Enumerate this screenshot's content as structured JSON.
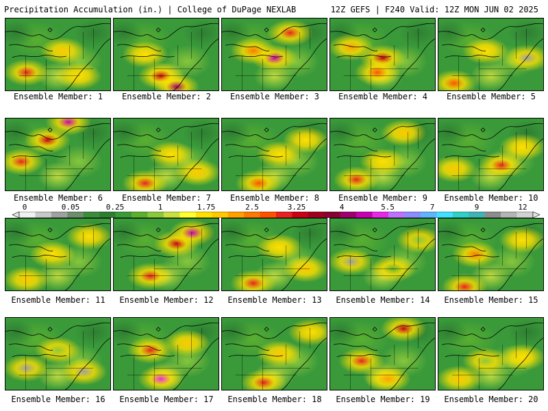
{
  "header": {
    "left_title": "Precipitation Accumulation (in.) | College of DuPage NEXLAB",
    "right_title": "12Z GEFS | F240 Valid: 12Z MON JUN 02 2025"
  },
  "colorbar": {
    "tick_labels": [
      "0",
      "0.05",
      "0.25",
      "1",
      "1.75",
      "2.5",
      "3.25",
      "4",
      "5.5",
      "7",
      "9",
      "12"
    ],
    "colors": [
      "#f0f0f0",
      "#c8c8c8",
      "#a0a0a0",
      "#6e8c6e",
      "#3c8c3c",
      "#2e7d32",
      "#3a9a3a",
      "#5cb030",
      "#8cc83c",
      "#c8e040",
      "#ffff30",
      "#ffe000",
      "#ffc800",
      "#ffa000",
      "#ff7800",
      "#ff5000",
      "#e82020",
      "#c80018",
      "#a00020",
      "#880030",
      "#a0006e",
      "#c800b4",
      "#e828e8",
      "#c070ff",
      "#8c8cff",
      "#60b4ff",
      "#40e0ff",
      "#30d0c8",
      "#40b4b4",
      "#8c8c8c",
      "#b4b4b4",
      "#d2d2d2"
    ]
  },
  "panels": [
    {
      "label": "Ensemble Member: 1",
      "hot": [
        [
          0.2,
          0.75,
          "#e82020"
        ],
        [
          0.55,
          0.45,
          "#ffc800"
        ],
        [
          0.7,
          0.8,
          "#ffe000"
        ]
      ]
    },
    {
      "label": "Ensemble Member: 2",
      "hot": [
        [
          0.45,
          0.8,
          "#c80018"
        ],
        [
          0.6,
          0.95,
          "#a0006e"
        ],
        [
          0.3,
          0.5,
          "#ffe000"
        ]
      ]
    },
    {
      "label": "Ensemble Member: 3",
      "hot": [
        [
          0.5,
          0.55,
          "#c800b4"
        ],
        [
          0.65,
          0.2,
          "#e82020"
        ],
        [
          0.3,
          0.45,
          "#ff7800"
        ]
      ]
    },
    {
      "label": "Ensemble Member: 4",
      "hot": [
        [
          0.5,
          0.55,
          "#c80018"
        ],
        [
          0.2,
          0.4,
          "#ffa000"
        ],
        [
          0.45,
          0.75,
          "#ff5000"
        ]
      ]
    },
    {
      "label": "Ensemble Member: 5",
      "hot": [
        [
          0.15,
          0.9,
          "#ff5000"
        ],
        [
          0.85,
          0.55,
          "#a0a0a0"
        ],
        [
          0.45,
          0.45,
          "#ffe000"
        ]
      ]
    },
    {
      "label": "Ensemble Member: 6",
      "hot": [
        [
          0.4,
          0.3,
          "#c80018"
        ],
        [
          0.6,
          0.05,
          "#c800b4"
        ],
        [
          0.15,
          0.6,
          "#e82020"
        ]
      ]
    },
    {
      "label": "Ensemble Member: 7",
      "hot": [
        [
          0.3,
          0.9,
          "#e82020"
        ],
        [
          0.55,
          0.5,
          "#ffe000"
        ],
        [
          0.8,
          0.75,
          "#ffc800"
        ]
      ]
    },
    {
      "label": "Ensemble Member: 8",
      "hot": [
        [
          0.35,
          0.9,
          "#ff5000"
        ],
        [
          0.55,
          0.5,
          "#ffe000"
        ],
        [
          0.8,
          0.3,
          "#ffe000"
        ]
      ]
    },
    {
      "label": "Ensemble Member: 9",
      "hot": [
        [
          0.25,
          0.85,
          "#e82020"
        ],
        [
          0.5,
          0.6,
          "#ffe000"
        ],
        [
          0.7,
          0.2,
          "#ffc800"
        ]
      ]
    },
    {
      "label": "Ensemble Member: 10",
      "hot": [
        [
          0.6,
          0.65,
          "#e82020"
        ],
        [
          0.15,
          0.7,
          "#ffc800"
        ],
        [
          0.8,
          0.4,
          "#ffe000"
        ]
      ]
    },
    {
      "label": "Ensemble Member: 11",
      "hot": [
        [
          0.8,
          0.25,
          "#ffe000"
        ],
        [
          0.45,
          0.5,
          "#ffe000"
        ],
        [
          0.2,
          0.85,
          "#ffc800"
        ]
      ]
    },
    {
      "label": "Ensemble Member: 12",
      "hot": [
        [
          0.6,
          0.35,
          "#c80018"
        ],
        [
          0.75,
          0.2,
          "#c800b4"
        ],
        [
          0.35,
          0.8,
          "#e82020"
        ]
      ]
    },
    {
      "label": "Ensemble Member: 13",
      "hot": [
        [
          0.3,
          0.9,
          "#e82020"
        ],
        [
          0.55,
          0.4,
          "#ffe000"
        ],
        [
          0.8,
          0.7,
          "#ffc800"
        ]
      ]
    },
    {
      "label": "Ensemble Member: 14",
      "hot": [
        [
          0.2,
          0.6,
          "#a0a0a0"
        ],
        [
          0.6,
          0.7,
          "#5cb030"
        ],
        [
          0.85,
          0.3,
          "#8cc83c"
        ]
      ]
    },
    {
      "label": "Ensemble Member: 15",
      "hot": [
        [
          0.25,
          0.95,
          "#e82020"
        ],
        [
          0.35,
          0.5,
          "#ff7800"
        ],
        [
          0.8,
          0.3,
          "#ffe000"
        ]
      ]
    },
    {
      "label": "Ensemble Member: 16",
      "hot": [
        [
          0.2,
          0.7,
          "#a0a0a0"
        ],
        [
          0.75,
          0.75,
          "#a0a0a0"
        ],
        [
          0.5,
          0.45,
          "#8cc83c"
        ]
      ]
    },
    {
      "label": "Ensemble Member: 17",
      "hot": [
        [
          0.45,
          0.85,
          "#e828e8"
        ],
        [
          0.35,
          0.45,
          "#e82020"
        ],
        [
          0.7,
          0.35,
          "#ffc800"
        ]
      ]
    },
    {
      "label": "Ensemble Member: 18",
      "hot": [
        [
          0.4,
          0.9,
          "#e82020"
        ],
        [
          0.55,
          0.5,
          "#ffc800"
        ],
        [
          0.85,
          0.2,
          "#ffe000"
        ]
      ]
    },
    {
      "label": "Ensemble Member: 19",
      "hot": [
        [
          0.3,
          0.6,
          "#e82020"
        ],
        [
          0.7,
          0.15,
          "#c80018"
        ],
        [
          0.55,
          0.85,
          "#ffa000"
        ]
      ]
    },
    {
      "label": "Ensemble Member: 20",
      "hot": [
        [
          0.8,
          0.55,
          "#ffe000"
        ],
        [
          0.45,
          0.6,
          "#8cc83c"
        ],
        [
          0.2,
          0.85,
          "#ffc800"
        ]
      ]
    }
  ]
}
